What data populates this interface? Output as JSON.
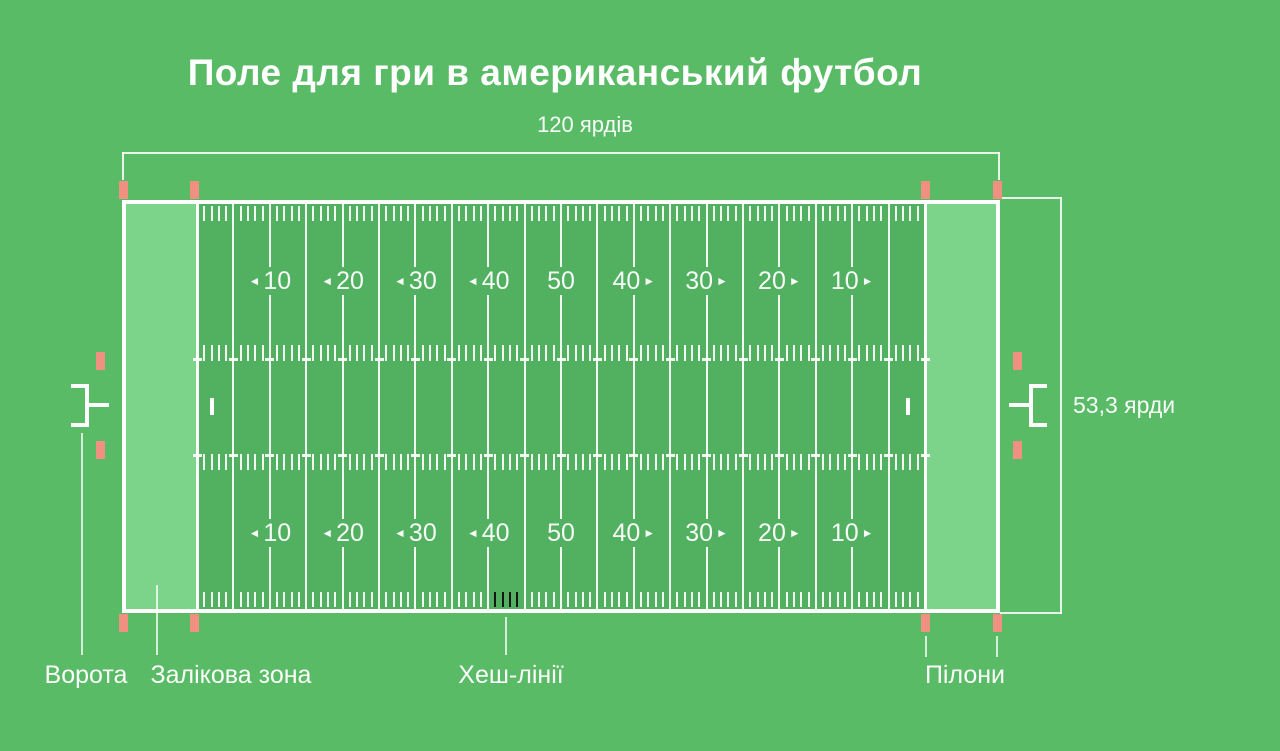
{
  "title": "Поле для гри в американський футбол",
  "dim_length": {
    "label": "120 ярдів"
  },
  "dim_width": {
    "label": "53,3 ярди"
  },
  "callouts": {
    "goal": "Ворота",
    "end_zone": "Залікова зона",
    "hash_lines": "Хеш-лінії",
    "pylons": "Пілони"
  },
  "yard_numbers": [
    {
      "label": "10",
      "arrow": "left"
    },
    {
      "label": "20",
      "arrow": "left"
    },
    {
      "label": "30",
      "arrow": "left"
    },
    {
      "label": "40",
      "arrow": "left"
    },
    {
      "label": "50",
      "arrow": "none"
    },
    {
      "label": "40",
      "arrow": "right"
    },
    {
      "label": "30",
      "arrow": "right"
    },
    {
      "label": "20",
      "arrow": "right"
    },
    {
      "label": "10",
      "arrow": "right"
    }
  ],
  "glyphs": {
    "arrow_left": "◄",
    "arrow_right": "►"
  },
  "field_spec": {
    "total_yards": 120,
    "playing_yards": 100,
    "five_yard_line_count": 21,
    "ticks_per_five_yards": 4,
    "black_highlight_tick_yards": [
      41,
      42,
      43,
      44
    ]
  },
  "colors": {
    "background": "#5abb67",
    "field": "#52b161",
    "end_zone": "#7cd38a",
    "line": "#ffffff",
    "pylon": "#f09080",
    "hash_highlight": "#161616",
    "text": "#ffffff"
  }
}
